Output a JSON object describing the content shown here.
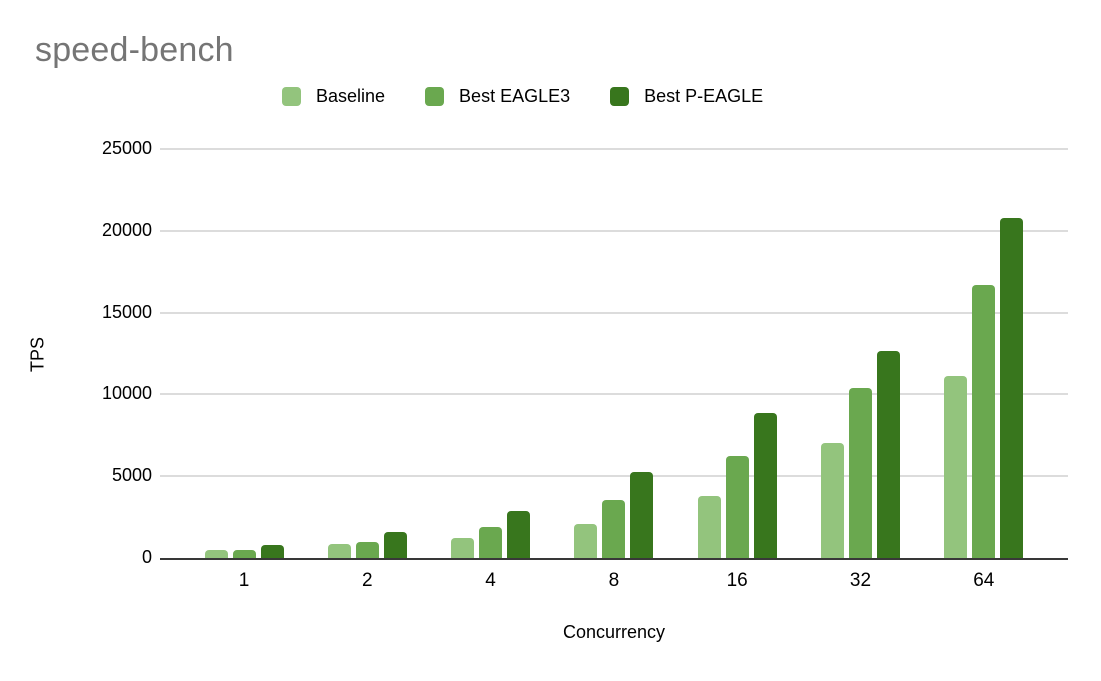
{
  "title": "speed-bench",
  "chart_data": {
    "type": "bar",
    "title": "speed-bench",
    "xlabel": "Concurrency",
    "ylabel": "TPS",
    "categories": [
      "1",
      "2",
      "4",
      "8",
      "16",
      "32",
      "64"
    ],
    "series": [
      {
        "name": "Baseline",
        "color": "#93c47d",
        "values": [
          480,
          850,
          1200,
          2100,
          3800,
          7000,
          11100
        ]
      },
      {
        "name": "Best EAGLE3",
        "color": "#6aa84f",
        "values": [
          470,
          950,
          1900,
          3550,
          6250,
          10400,
          16700
        ]
      },
      {
        "name": "Best P-EAGLE",
        "color": "#38761d",
        "values": [
          800,
          1600,
          2900,
          5250,
          8850,
          12650,
          20800
        ]
      }
    ],
    "ylim": [
      0,
      25000
    ],
    "yticks": [
      0,
      5000,
      10000,
      15000,
      20000,
      25000
    ],
    "grid": true,
    "legend_position": "top"
  },
  "colors": {
    "title_gray": "#757575",
    "gridline": "#dcdcdc",
    "axis_line": "#383838",
    "background": "#ffffff"
  }
}
